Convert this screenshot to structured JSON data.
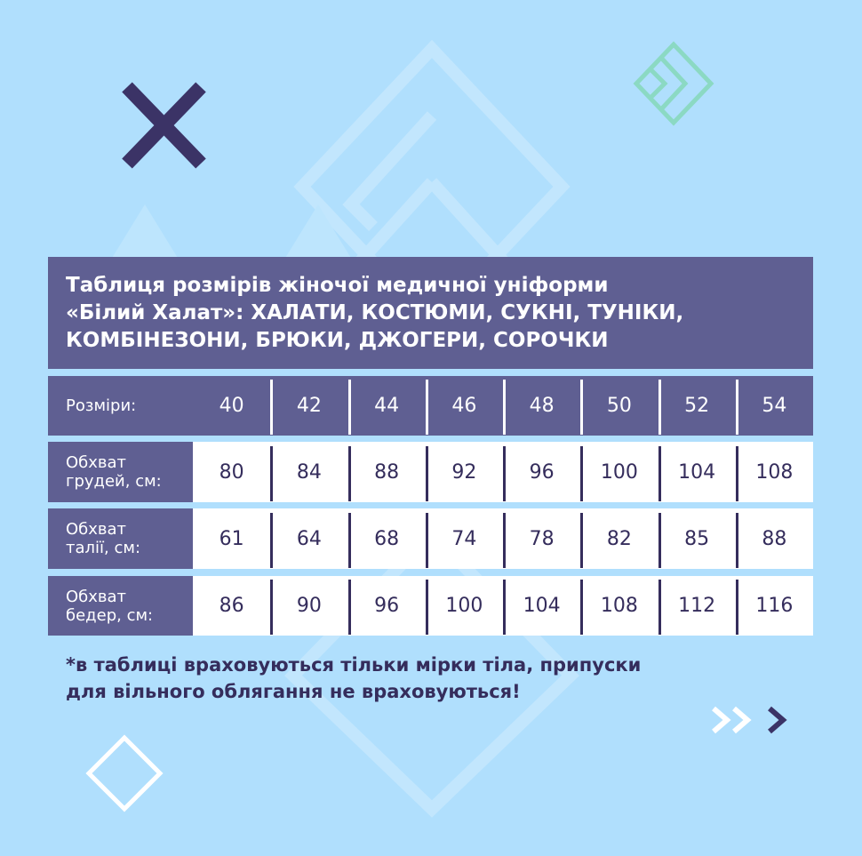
{
  "title_lines": [
    "Таблиця розмірів жіночої медичної уніформи",
    "«Білий Халат»:  ХАЛАТИ, КОСТЮМИ, СУКНІ, ТУНІКИ,",
    "КОМБІНЕЗОНИ, БРЮКИ, ДЖОГЕРИ, СОРОЧКИ"
  ],
  "table": {
    "header": {
      "label": "Розміри:",
      "values": [
        "40",
        "42",
        "44",
        "46",
        "48",
        "50",
        "52",
        "54"
      ]
    },
    "rows": [
      {
        "label": [
          "Обхват",
          "грудей, см:"
        ],
        "values": [
          "80",
          "84",
          "88",
          "92",
          "96",
          "100",
          "104",
          "108"
        ]
      },
      {
        "label": [
          "Обхват",
          "талії, см:"
        ],
        "values": [
          "61",
          "64",
          "68",
          "74",
          "78",
          "82",
          "85",
          "88"
        ]
      },
      {
        "label": [
          "Обхват",
          "бедер, см:"
        ],
        "values": [
          "86",
          "90",
          "96",
          "100",
          "104",
          "108",
          "112",
          "116"
        ]
      }
    ]
  },
  "note_lines": [
    "*в таблиці враховуються тільки мірки тіла, припуски",
    "для вільного облягання не враховуються!"
  ],
  "colors": {
    "background": "#b0dffd",
    "panel": "#5f5f92",
    "dark": "#352d5c",
    "accent": "#8bd9c3"
  }
}
